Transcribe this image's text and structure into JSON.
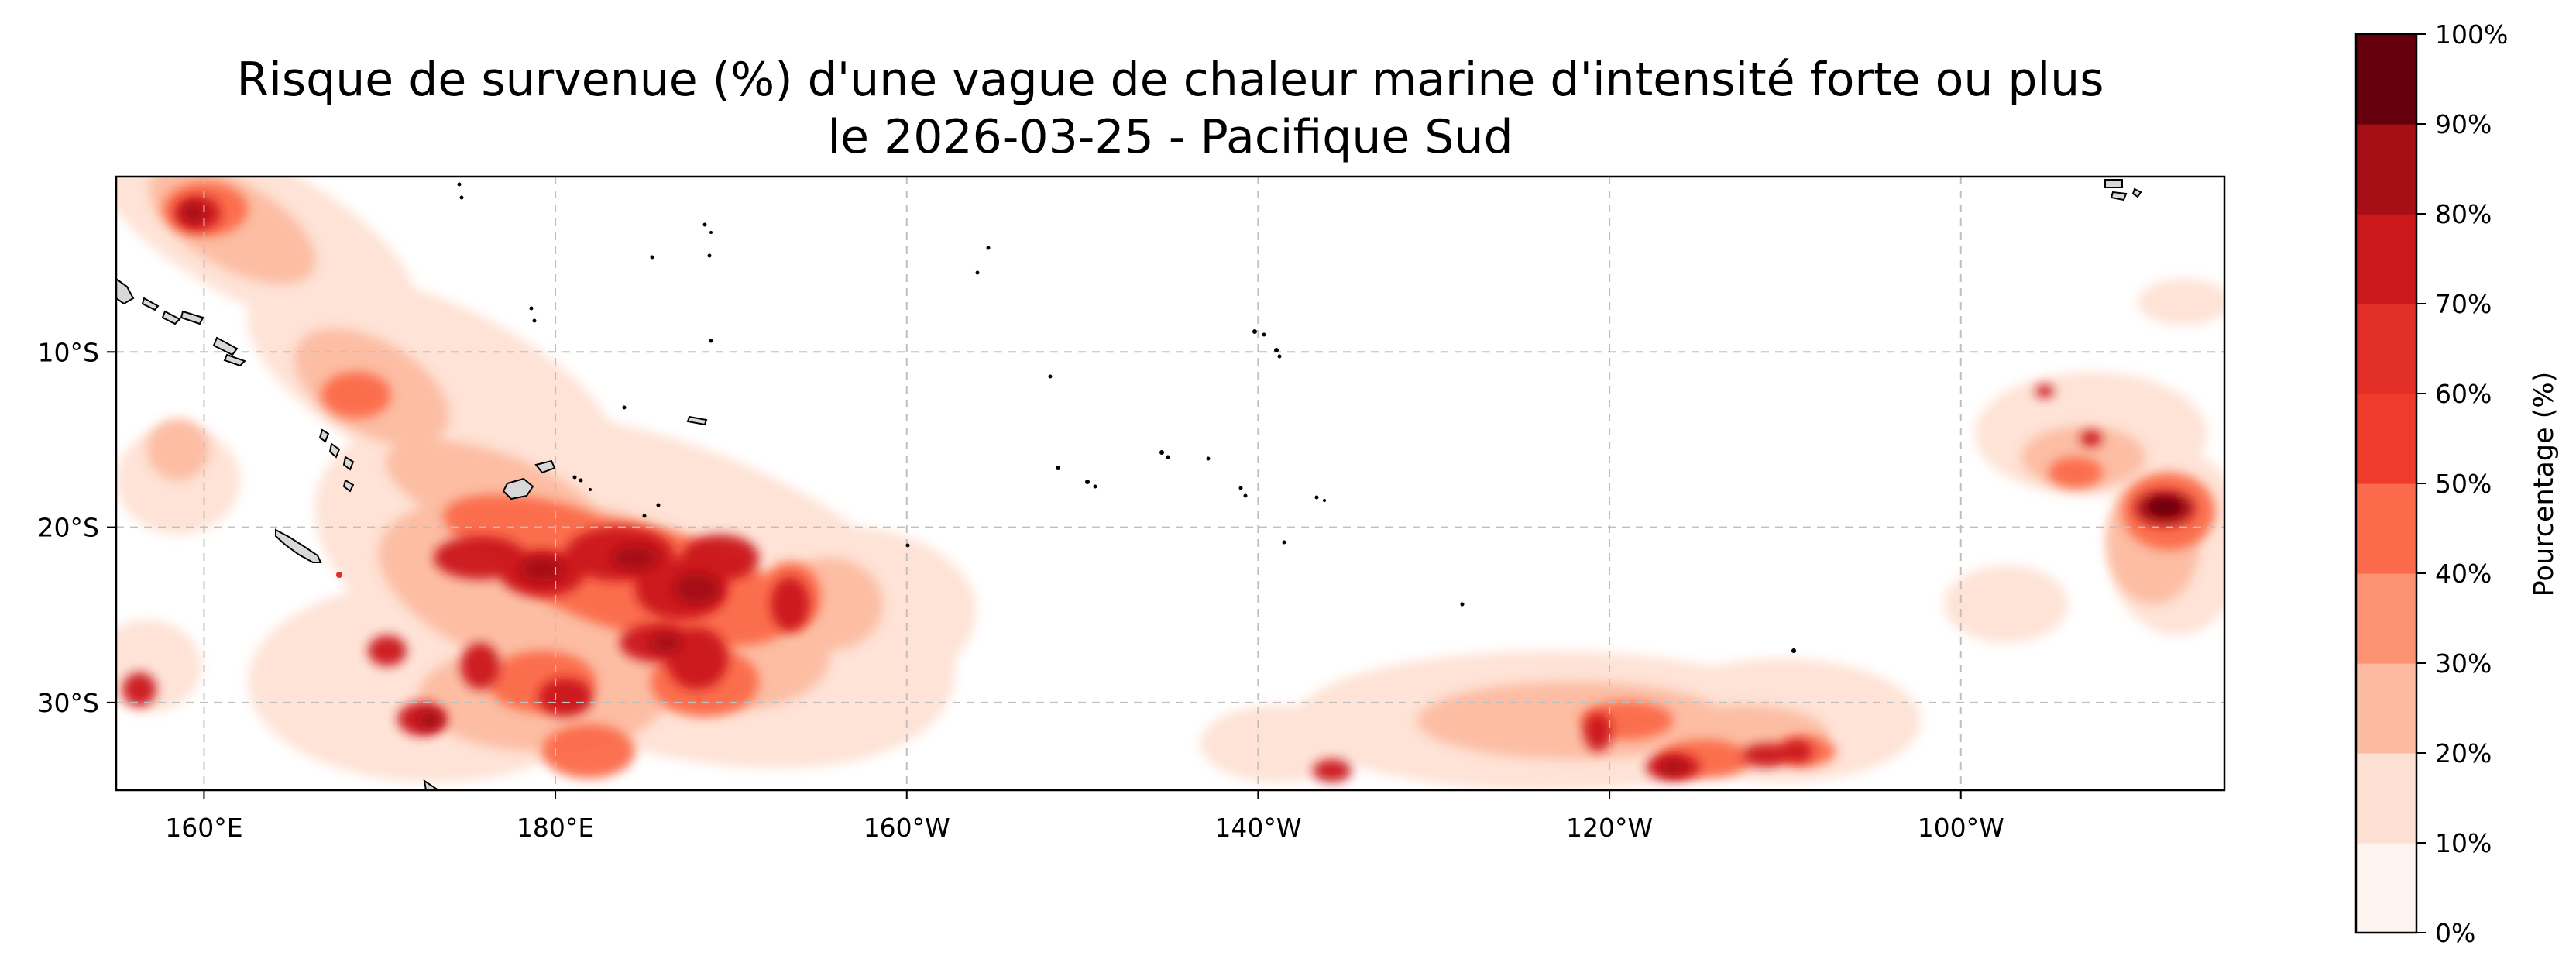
{
  "title": {
    "line1": "Risque de survenue (%) d'une vague de chaleur marine d'intensité forte ou plus",
    "line2": "le 2026-03-25 - Pacifique Sud"
  },
  "map": {
    "lon_range": [
      155,
      275
    ],
    "lat_range": [
      -35,
      0
    ],
    "grid": "dashed",
    "x_ticks": [
      {
        "lon": 160,
        "label": "160°E"
      },
      {
        "lon": 180,
        "label": "180°E"
      },
      {
        "lon": 200,
        "label": "160°W"
      },
      {
        "lon": 220,
        "label": "140°W"
      },
      {
        "lon": 240,
        "label": "120°W"
      },
      {
        "lon": 260,
        "label": "100°W"
      }
    ],
    "y_ticks": [
      {
        "lat": -10,
        "label": "10°S"
      },
      {
        "lat": -20,
        "label": "20°S"
      },
      {
        "lat": -30,
        "label": "30°S"
      }
    ]
  },
  "colorbar": {
    "label": "Pourcentage (%)",
    "levels": [
      "0%",
      "10%",
      "20%",
      "30%",
      "40%",
      "50%",
      "60%",
      "70%",
      "80%",
      "90%",
      "100%"
    ],
    "colors": [
      "#fff5f0",
      "#fee0d2",
      "#fcbba1",
      "#fc9272",
      "#fb6a4a",
      "#ef3b2c",
      "#e12f27",
      "#cb181d",
      "#a50f15",
      "#67000d"
    ]
  }
}
